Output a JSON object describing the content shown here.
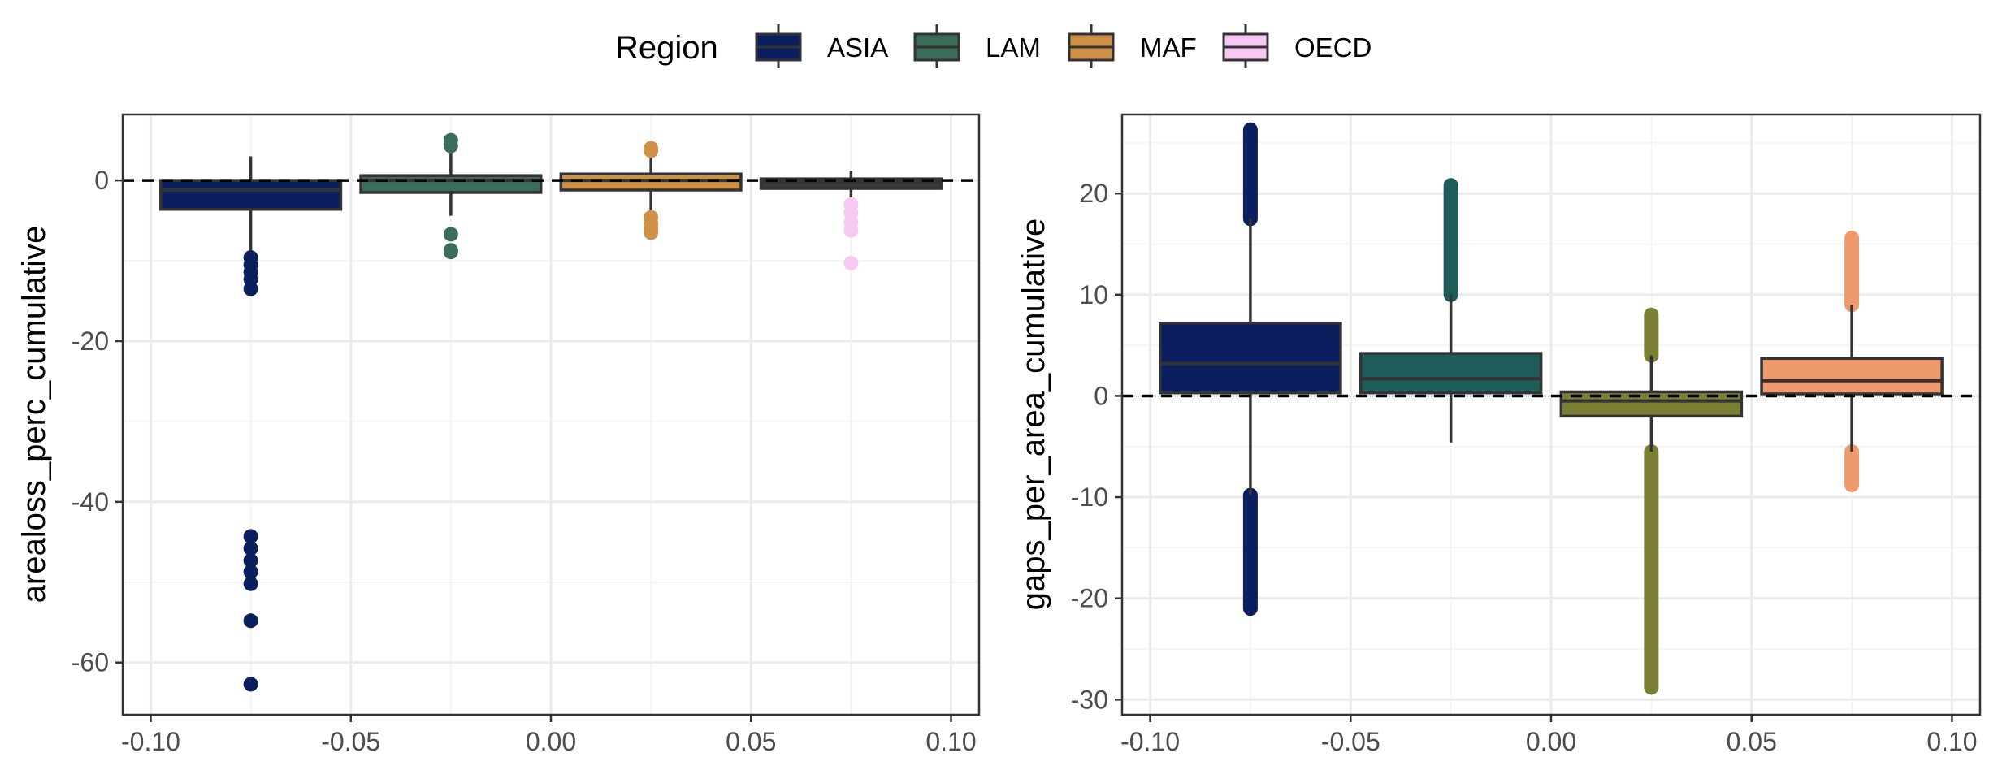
{
  "legend": {
    "title": "Region",
    "items": [
      {
        "label": "ASIA",
        "color": "#0b1f5e"
      },
      {
        "label": "LAM",
        "color": "#3a6e58"
      },
      {
        "label": "MAF",
        "color": "#cf9048"
      },
      {
        "label": "OECD",
        "color": "#f7c8f2"
      }
    ]
  },
  "chart_data": [
    {
      "type": "box",
      "ylabel": "arealoss_perc_cumulative",
      "xlabel": "",
      "xlim": [
        -0.107,
        0.107
      ],
      "ylim": [
        -66.5,
        8.2
      ],
      "xticks": [
        -0.1,
        -0.05,
        0.0,
        0.05,
        0.1
      ],
      "xtick_labels": [
        "-0.10",
        "-0.05",
        "0.00",
        "0.05",
        "0.10"
      ],
      "yticks": [
        0,
        -20,
        -40,
        -60
      ],
      "ytick_labels": [
        "0",
        "-20",
        "-40",
        "-60"
      ],
      "reference_line": 0,
      "grid": true,
      "boxes": [
        {
          "region": "ASIA",
          "x": -0.075,
          "fill": "#0b1f5e",
          "point_color": "#0b1f5e",
          "q1": -3.6,
          "median": -1.2,
          "q3": 0.0,
          "whisker_low": -9.0,
          "whisker_high": 3.0,
          "outliers": [
            -9.6,
            -10.5,
            -11.4,
            -12.3,
            -13.5,
            -44.3,
            -45.8,
            -47.3,
            -48.7,
            -50.2,
            -54.8,
            -62.7
          ]
        },
        {
          "region": "LAM",
          "x": -0.025,
          "fill": "#3a6e58",
          "point_color": "#3a6e58",
          "q1": -1.5,
          "median": 0.0,
          "q3": 0.6,
          "whisker_low": -4.4,
          "whisker_high": 3.6,
          "outliers": [
            4.3,
            5.0,
            -6.7,
            -8.7,
            -8.9
          ]
        },
        {
          "region": "MAF",
          "x": 0.025,
          "fill": "#cf9048",
          "point_color": "#cf9048",
          "q1": -1.2,
          "median": 0.0,
          "q3": 0.8,
          "whisker_low": -3.7,
          "whisker_high": 3.2,
          "outliers": [
            3.7,
            4.0,
            -4.6,
            -5.4,
            -6.0,
            -6.5
          ]
        },
        {
          "region": "OECD",
          "x": 0.075,
          "fill": "#3a3a3a",
          "point_color": "#f7c8f2",
          "q1": -1.0,
          "median": -0.2,
          "q3": 0.2,
          "whisker_low": -2.5,
          "whisker_high": 1.2,
          "outliers": [
            -3.0,
            -4.0,
            -5.2,
            -6.2,
            -10.3
          ]
        }
      ]
    },
    {
      "type": "box",
      "ylabel": "gaps_per_area_cumulative",
      "xlabel": "",
      "xlim": [
        -0.107,
        0.107
      ],
      "ylim": [
        -31.5,
        27.8
      ],
      "xticks": [
        -0.1,
        -0.05,
        0.0,
        0.05,
        0.1
      ],
      "xtick_labels": [
        "-0.10",
        "-0.05",
        "0.00",
        "0.05",
        "0.10"
      ],
      "yticks": [
        20,
        10,
        0,
        -10,
        -20,
        -30
      ],
      "ytick_labels": [
        "20",
        "10",
        "0",
        "-10",
        "-20",
        "-30"
      ],
      "reference_line": 0,
      "grid": true,
      "boxes": [
        {
          "region": "",
          "x": -0.075,
          "fill": "#0b1f5e",
          "point_color": "#0b1f5e",
          "q1": 0.3,
          "median": 3.2,
          "q3": 7.2,
          "whisker_low": -9.8,
          "whisker_high": 17.5,
          "outlier_bands": [
            [
              17.5,
              26.3
            ],
            [
              -21.0,
              -9.8
            ]
          ]
        },
        {
          "region": "",
          "x": -0.025,
          "fill": "#1e5c5a",
          "point_color": "#1e5c5a",
          "q1": 0.3,
          "median": 1.7,
          "q3": 4.2,
          "whisker_low": -4.6,
          "whisker_high": 10.0,
          "outlier_bands": [
            [
              10.0,
              20.8
            ]
          ]
        },
        {
          "region": "",
          "x": 0.025,
          "fill": "#7b7f34",
          "point_color": "#7b7f34",
          "q1": -2.0,
          "median": -0.5,
          "q3": 0.4,
          "whisker_low": -5.5,
          "whisker_high": 4.0,
          "outlier_bands": [
            [
              4.0,
              8.0
            ],
            [
              -28.8,
              -5.5
            ]
          ]
        },
        {
          "region": "",
          "x": 0.075,
          "fill": "#ee9a6c",
          "point_color": "#ee9a6c",
          "q1": 0.2,
          "median": 1.5,
          "q3": 3.7,
          "whisker_low": -5.5,
          "whisker_high": 9.0,
          "outlier_bands": [
            [
              9.0,
              15.6
            ],
            [
              -8.8,
              -5.5
            ]
          ]
        }
      ]
    }
  ]
}
